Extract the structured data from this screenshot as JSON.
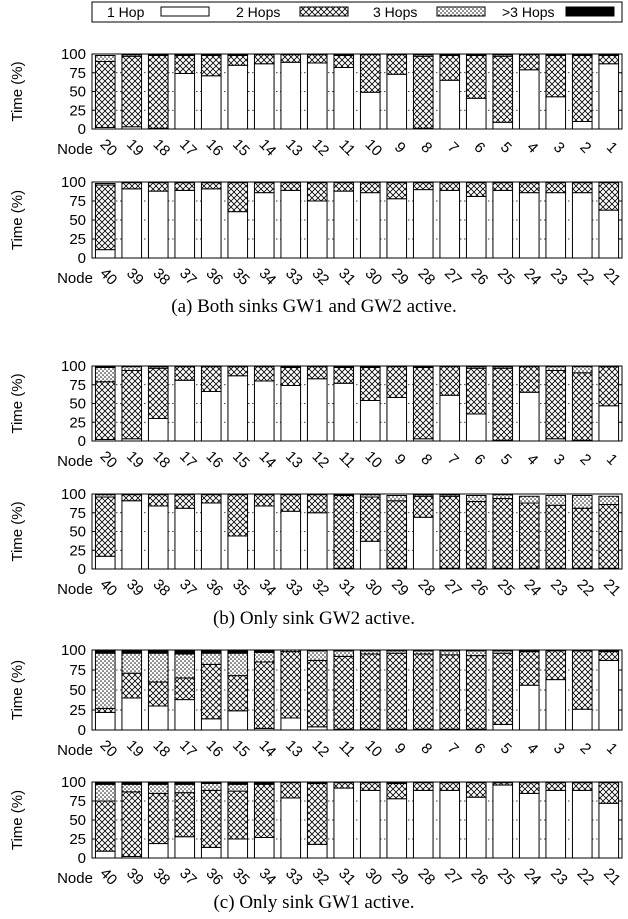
{
  "legend": [
    {
      "label": "1 Hop",
      "pattern": "white"
    },
    {
      "label": "2 Hops",
      "pattern": "cross"
    },
    {
      "label": "3 Hops",
      "pattern": "dots"
    },
    {
      "label": ">3 Hops",
      "pattern": "black"
    }
  ],
  "colors": {
    "stroke": "#000000",
    "fill_1hop": "#ffffff",
    "fill_more": "#000000"
  },
  "captions": [
    "(a) Both sinks GW1 and GW2 active.",
    "(b) Only sink GW2 active.",
    "(c) Only sink GW1 active."
  ],
  "chart_data": [
    {
      "type": "bar",
      "stacked": true,
      "panel": "(a)",
      "ylabel": "Time (%)",
      "xlabel": "Node",
      "ylim": [
        0,
        100
      ],
      "yticks": [
        0,
        25,
        50,
        75,
        100
      ],
      "grid": "horizontal dotted",
      "categories": [
        "20",
        "19",
        "18",
        "17",
        "16",
        "15",
        "14",
        "13",
        "12",
        "11",
        "10",
        "9",
        "8",
        "7",
        "6",
        "5",
        "4",
        "3",
        "2",
        "1"
      ],
      "series": [
        {
          "name": "1 Hop",
          "values": [
            2,
            3,
            1,
            74,
            71,
            85,
            87,
            89,
            88,
            82,
            49,
            73,
            1,
            65,
            41,
            9,
            79,
            43,
            10,
            87
          ]
        },
        {
          "name": "2 Hops",
          "values": [
            88,
            94,
            97,
            24,
            27,
            13,
            12,
            10,
            11,
            16,
            50,
            26,
            96,
            33,
            57,
            88,
            20,
            55,
            88,
            11
          ]
        },
        {
          "name": "3 Hops",
          "values": [
            8,
            2,
            1,
            1,
            1,
            1,
            0,
            0,
            0,
            1,
            0,
            0,
            2,
            1,
            1,
            2,
            0,
            1,
            1,
            1
          ]
        },
        {
          "name": ">3 Hops",
          "values": [
            0,
            0,
            0,
            0,
            0,
            0,
            0,
            0,
            0,
            0,
            0,
            0,
            0,
            0,
            0,
            0,
            0,
            0,
            0,
            0
          ]
        }
      ]
    },
    {
      "type": "bar",
      "stacked": true,
      "panel": "(a)",
      "ylabel": "Time (%)",
      "xlabel": "Node",
      "ylim": [
        0,
        100
      ],
      "yticks": [
        0,
        25,
        50,
        75,
        100
      ],
      "grid": "horizontal dotted",
      "categories": [
        "40",
        "39",
        "38",
        "37",
        "36",
        "35",
        "34",
        "33",
        "32",
        "31",
        "30",
        "29",
        "28",
        "27",
        "26",
        "25",
        "24",
        "23",
        "22",
        "21"
      ],
      "series": [
        {
          "name": "1 Hop",
          "values": [
            11,
            91,
            88,
            89,
            91,
            61,
            86,
            89,
            75,
            88,
            86,
            78,
            90,
            89,
            81,
            89,
            86,
            86,
            86,
            63
          ]
        },
        {
          "name": "2 Hops",
          "values": [
            85,
            8,
            11,
            10,
            8,
            38,
            13,
            10,
            24,
            11,
            13,
            21,
            9,
            10,
            18,
            10,
            13,
            13,
            13,
            36
          ]
        },
        {
          "name": "3 Hops",
          "values": [
            2,
            0,
            0,
            0,
            0,
            0,
            0,
            0,
            0,
            0,
            0,
            0,
            0,
            0,
            0,
            0,
            0,
            0,
            0,
            0
          ]
        },
        {
          "name": ">3 Hops",
          "values": [
            0,
            0,
            0,
            0,
            0,
            0,
            0,
            0,
            0,
            0,
            0,
            0,
            0,
            0,
            0,
            0,
            0,
            0,
            0,
            0
          ]
        }
      ]
    },
    {
      "type": "bar",
      "stacked": true,
      "panel": "(b)",
      "ylabel": "Time (%)",
      "xlabel": "Node",
      "ylim": [
        0,
        100
      ],
      "yticks": [
        0,
        25,
        50,
        75,
        100
      ],
      "grid": "horizontal dotted",
      "categories": [
        "20",
        "19",
        "18",
        "17",
        "16",
        "15",
        "14",
        "13",
        "12",
        "11",
        "10",
        "9",
        "8",
        "7",
        "6",
        "5",
        "4",
        "3",
        "2",
        "1"
      ],
      "series": [
        {
          "name": "1 Hop",
          "values": [
            2,
            3,
            30,
            81,
            66,
            87,
            80,
            74,
            83,
            77,
            54,
            58,
            3,
            61,
            36,
            1,
            65,
            3,
            1,
            47
          ]
        },
        {
          "name": "2 Hops",
          "values": [
            77,
            91,
            67,
            18,
            33,
            12,
            19,
            24,
            16,
            21,
            44,
            41,
            95,
            38,
            61,
            96,
            34,
            91,
            90,
            52
          ]
        },
        {
          "name": "3 Hops",
          "values": [
            19,
            5,
            2,
            0,
            0,
            0,
            0,
            1,
            0,
            1,
            1,
            0,
            1,
            0,
            2,
            2,
            0,
            5,
            8,
            1
          ]
        },
        {
          "name": ">3 Hops",
          "values": [
            1,
            0,
            0,
            0,
            0,
            0,
            0,
            0,
            0,
            0,
            0,
            0,
            0,
            0,
            0,
            0,
            0,
            0,
            0,
            0
          ]
        }
      ]
    },
    {
      "type": "bar",
      "stacked": true,
      "panel": "(b)",
      "ylabel": "Time (%)",
      "xlabel": "Node",
      "ylim": [
        0,
        100
      ],
      "yticks": [
        0,
        25,
        50,
        75,
        100
      ],
      "grid": "horizontal dotted",
      "categories": [
        "40",
        "39",
        "38",
        "37",
        "36",
        "35",
        "34",
        "33",
        "32",
        "31",
        "30",
        "29",
        "28",
        "27",
        "26",
        "25",
        "24",
        "23",
        "22",
        "21"
      ],
      "series": [
        {
          "name": "1 Hop",
          "values": [
            17,
            91,
            84,
            81,
            88,
            44,
            84,
            77,
            75,
            1,
            37,
            1,
            69,
            1,
            1,
            1,
            1,
            1,
            1,
            1
          ]
        },
        {
          "name": "2 Hops",
          "values": [
            79,
            8,
            15,
            18,
            11,
            55,
            15,
            22,
            24,
            97,
            59,
            90,
            28,
            96,
            89,
            93,
            87,
            84,
            80,
            85
          ]
        },
        {
          "name": "3 Hops",
          "values": [
            3,
            0,
            0,
            0,
            0,
            0,
            0,
            0,
            0,
            1,
            3,
            7,
            2,
            2,
            8,
            5,
            9,
            13,
            17,
            11
          ]
        },
        {
          "name": ">3 Hops",
          "values": [
            0,
            0,
            0,
            0,
            0,
            0,
            0,
            0,
            0,
            0,
            0,
            0,
            0,
            0,
            0,
            0,
            0,
            0,
            0,
            0
          ]
        }
      ]
    },
    {
      "type": "bar",
      "stacked": true,
      "panel": "(c)",
      "ylabel": "Time (%)",
      "xlabel": "Node",
      "ylim": [
        0,
        100
      ],
      "yticks": [
        0,
        25,
        50,
        75,
        100
      ],
      "grid": "horizontal dotted",
      "categories": [
        "20",
        "19",
        "18",
        "17",
        "16",
        "15",
        "14",
        "13",
        "12",
        "11",
        "10",
        "9",
        "8",
        "7",
        "6",
        "5",
        "4",
        "3",
        "2",
        "1"
      ],
      "series": [
        {
          "name": "1 Hop",
          "values": [
            22,
            40,
            30,
            38,
            14,
            24,
            2,
            15,
            4,
            1,
            1,
            1,
            1,
            1,
            1,
            7,
            56,
            63,
            26,
            87
          ]
        },
        {
          "name": "2 Hops",
          "values": [
            5,
            31,
            30,
            27,
            68,
            44,
            83,
            83,
            83,
            91,
            94,
            95,
            94,
            93,
            92,
            89,
            42,
            36,
            73,
            11
          ]
        },
        {
          "name": "3 Hops",
          "values": [
            69,
            25,
            36,
            30,
            14,
            28,
            12,
            2,
            12,
            7,
            4,
            3,
            4,
            5,
            6,
            3,
            1,
            0,
            0,
            1
          ]
        },
        {
          "name": ">3 Hops",
          "values": [
            3,
            4,
            4,
            4,
            3,
            3,
            2,
            0,
            1,
            1,
            1,
            1,
            1,
            1,
            1,
            1,
            1,
            1,
            1,
            1
          ]
        }
      ]
    },
    {
      "type": "bar",
      "stacked": true,
      "panel": "(c)",
      "ylabel": "Time (%)",
      "xlabel": "Node",
      "ylim": [
        0,
        100
      ],
      "yticks": [
        0,
        25,
        50,
        75,
        100
      ],
      "grid": "horizontal dotted",
      "categories": [
        "40",
        "39",
        "38",
        "37",
        "36",
        "35",
        "34",
        "33",
        "32",
        "31",
        "30",
        "29",
        "28",
        "27",
        "26",
        "25",
        "24",
        "23",
        "22",
        "21"
      ],
      "series": [
        {
          "name": "1 Hop",
          "values": [
            9,
            2,
            19,
            28,
            14,
            25,
            27,
            79,
            18,
            92,
            89,
            78,
            89,
            89,
            80,
            96,
            85,
            89,
            89,
            72
          ]
        },
        {
          "name": "2 Hops",
          "values": [
            66,
            85,
            66,
            58,
            75,
            63,
            70,
            20,
            80,
            7,
            10,
            20,
            10,
            10,
            19,
            3,
            14,
            10,
            10,
            27
          ]
        },
        {
          "name": "3 Hops",
          "values": [
            22,
            10,
            12,
            11,
            9,
            9,
            1,
            0,
            1,
            0,
            0,
            1,
            0,
            0,
            0,
            0,
            0,
            0,
            0,
            0
          ]
        },
        {
          "name": ">3 Hops",
          "values": [
            2,
            2,
            2,
            2,
            1,
            2,
            1,
            0,
            0,
            0,
            0,
            0,
            0,
            0,
            0,
            0,
            0,
            0,
            0,
            0
          ]
        }
      ]
    }
  ]
}
